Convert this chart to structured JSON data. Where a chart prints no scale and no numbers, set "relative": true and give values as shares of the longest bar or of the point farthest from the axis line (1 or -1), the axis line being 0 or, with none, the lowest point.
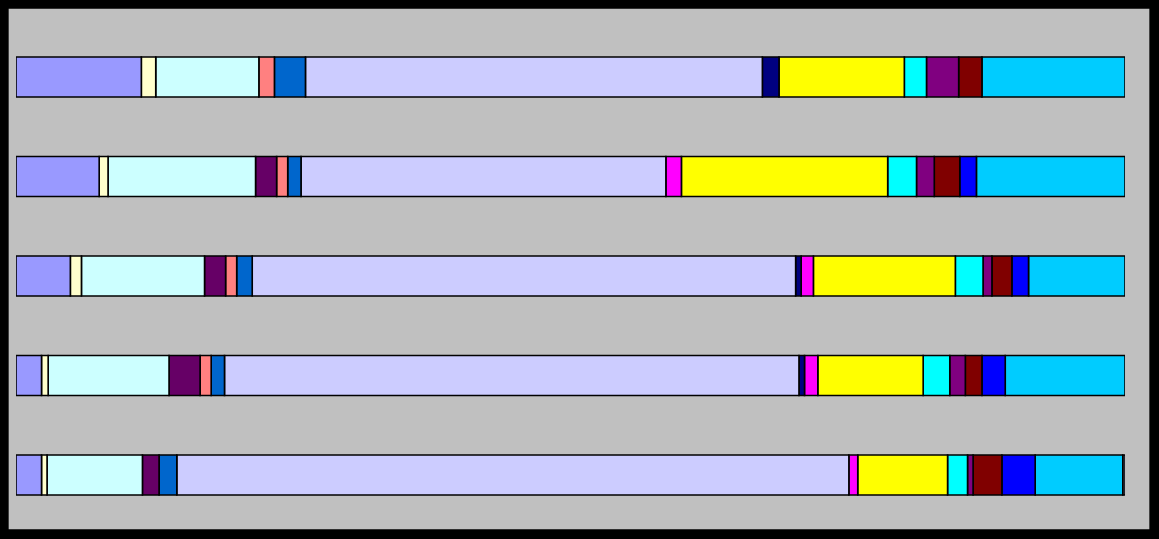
{
  "chart_data": {
    "type": "bar",
    "orientation": "horizontal",
    "stacked": true,
    "relative": true,
    "categories": [
      null,
      null,
      null,
      null,
      null
    ],
    "series": [
      {
        "color": "#9999ff",
        "values": [
          0.113,
          0.075,
          0.049,
          0.023,
          0.023
        ]
      },
      {
        "color": "#ffffcc",
        "values": [
          0.013,
          0.008,
          0.01,
          0.006,
          0.005
        ]
      },
      {
        "color": "#ccffff",
        "values": [
          0.093,
          0.133,
          0.111,
          0.109,
          0.086
        ]
      },
      {
        "color": "#660066",
        "values": [
          0,
          0.019,
          0.019,
          0.028,
          0.015
        ]
      },
      {
        "color": "#ff8080",
        "values": [
          0.014,
          0.01,
          0.01,
          0.01,
          0
        ]
      },
      {
        "color": "#0066cc",
        "values": [
          0.028,
          0.012,
          0.014,
          0.012,
          0.016
        ]
      },
      {
        "color": "#ccccff",
        "values": [
          0.412,
          0.329,
          0.49,
          0.518,
          0.606
        ]
      },
      {
        "color": "#000080",
        "values": [
          0.015,
          0,
          0.005,
          0.005,
          0
        ]
      },
      {
        "color": "#ff00ff",
        "values": [
          0,
          0.014,
          0.011,
          0.012,
          0.008
        ]
      },
      {
        "color": "#ffff00",
        "values": [
          0.113,
          0.186,
          0.128,
          0.095,
          0.081
        ]
      },
      {
        "color": "#00ffff",
        "values": [
          0.02,
          0.026,
          0.025,
          0.024,
          0.018
        ]
      },
      {
        "color": "#800080",
        "values": [
          0.029,
          0.016,
          0.008,
          0.014,
          0.005
        ]
      },
      {
        "color": "#800000",
        "values": [
          0.021,
          0.023,
          0.018,
          0.015,
          0.026
        ]
      },
      {
        "color": "#0000ff",
        "values": [
          0,
          0.015,
          0.015,
          0.021,
          0.03
        ]
      },
      {
        "color": "#00ccff",
        "values": [
          0.129,
          0.134,
          0.087,
          0.108,
          0.079
        ]
      },
      {
        "color": "#99a0cc",
        "values": [
          0,
          0,
          0,
          0,
          0.002
        ]
      }
    ]
  }
}
